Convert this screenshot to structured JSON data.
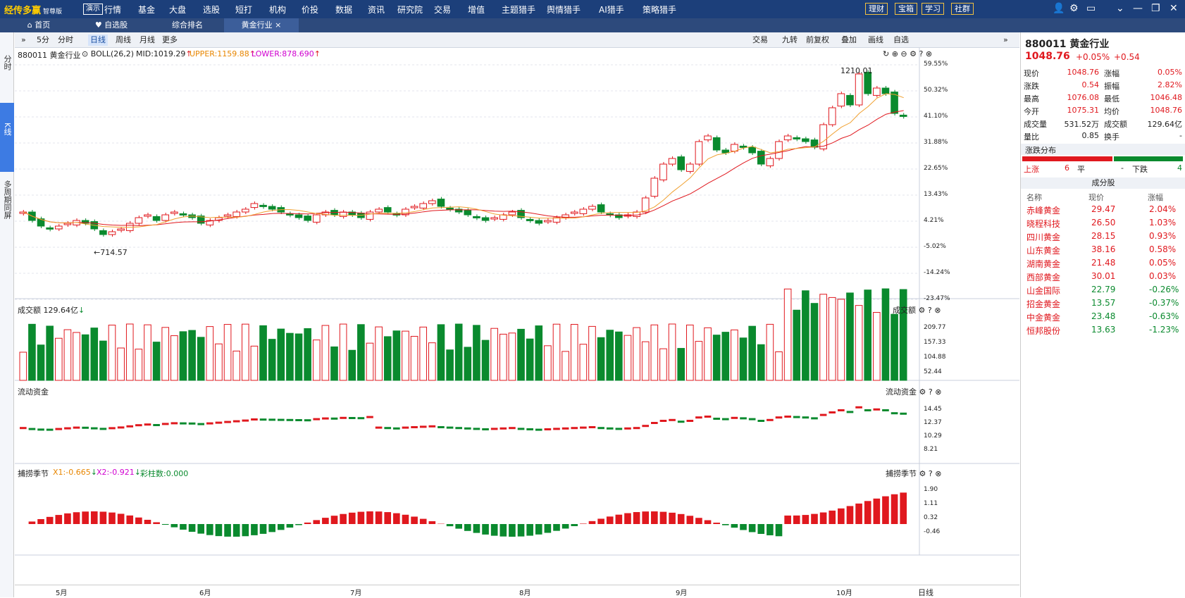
{
  "app": {
    "logo": "经传多赢",
    "edition": "智尊版",
    "demo": "演示"
  },
  "nav": [
    "行情",
    "基金",
    "大盘",
    "选股",
    "短打",
    "机构",
    "价投",
    "数据",
    "资讯",
    "研究院",
    "交易",
    "增值",
    "主题猎手",
    "舆情猎手",
    "AI猎手",
    "策略猎手"
  ],
  "top_right": [
    "理财",
    "宝箱",
    "学习",
    "社群"
  ],
  "tabs": [
    "首页",
    "自选股",
    "综合排名",
    "黄金行业"
  ],
  "left_buttons": [
    "分时",
    "K线",
    "多周期同屏"
  ],
  "toolbar": {
    "periods": [
      "5分",
      "分时",
      "日线",
      "周线",
      "月线",
      "更多"
    ],
    "active": "日线",
    "right": [
      "交易",
      "九转",
      "前复权",
      "叠加",
      "画线",
      "自选"
    ]
  },
  "main_indicator": {
    "code": "880011",
    "name": "黄金行业",
    "boll": "BOLL(26,2)",
    "mid": "MID:1019.29",
    "upper": "UPPER:1159.88",
    "lower": "LOWER:878.690",
    "high_mark": "1210.01",
    "low_mark": "714.57"
  },
  "price_axis": [
    "59.55%",
    "50.32%",
    "41.10%",
    "31.88%",
    "22.65%",
    "13.43%",
    "4.21%",
    "-5.02%",
    "-14.24%",
    "-23.47%"
  ],
  "volume": {
    "label": "成交额",
    "value": "129.64亿",
    "axis": [
      "209.77",
      "157.33",
      "104.88",
      "52.44"
    ],
    "unit": "X亿",
    "title_r": "成交额"
  },
  "flow": {
    "label": "流动资金",
    "axis": [
      "14.45",
      "12.37",
      "10.29",
      "8.21"
    ],
    "unit": "X亿",
    "title_r": "流动资金"
  },
  "season": {
    "label": "捕捞季节",
    "x1": "X1:-0.665",
    "x2": "X2:-0.921",
    "bars": "彩柱数:0.000",
    "axis": [
      "1.90",
      "1.11",
      "0.32",
      "-0.46"
    ],
    "title_r": "捕捞季节"
  },
  "months": [
    "5月",
    "6月",
    "7月",
    "8月",
    "9月",
    "10月"
  ],
  "period_footer": "日线",
  "quote": {
    "title": "880011 黄金行业",
    "price": "1048.76",
    "change_pct": "+0.05%",
    "change": "+0.54",
    "rows": [
      [
        "现价",
        "1048.76",
        "涨幅",
        "0.05%"
      ],
      [
        "涨跌",
        "0.54",
        "振幅",
        "2.82%"
      ],
      [
        "最高",
        "1076.08",
        "最低",
        "1046.48"
      ],
      [
        "今开",
        "1075.31",
        "均价",
        "1048.76"
      ],
      [
        "成交量",
        "531.52万",
        "成交额",
        "129.64亿"
      ],
      [
        "量比",
        "0.85",
        "换手",
        "-"
      ]
    ],
    "dist_title": "涨跌分布",
    "up_label": "上涨",
    "up": "6",
    "flat_label": "平",
    "flat": "-",
    "down_label": "下跌",
    "down": "4",
    "constituents_title": "成分股",
    "headers": [
      "名称",
      "现价",
      "涨幅"
    ],
    "stocks": [
      [
        "赤峰黄金",
        "29.47",
        "2.04%"
      ],
      [
        "晓程科技",
        "26.50",
        "1.03%"
      ],
      [
        "四川黄金",
        "28.15",
        "0.93%"
      ],
      [
        "山东黄金",
        "38.16",
        "0.58%"
      ],
      [
        "湖南黄金",
        "21.48",
        "0.05%"
      ],
      [
        "西部黄金",
        "30.01",
        "0.03%"
      ],
      [
        "山金国际",
        "22.79",
        "-0.26%"
      ],
      [
        "招金黄金",
        "13.57",
        "-0.37%"
      ],
      [
        "中金黄金",
        "23.48",
        "-0.63%"
      ],
      [
        "恒邦股份",
        "13.63",
        "-1.23%"
      ]
    ]
  },
  "chart_data": {
    "type": "candlestick",
    "title": "880011 黄金行业",
    "description_note": "daily candles, ~5月 to 10月",
    "closes_pct": [
      3,
      0,
      -2,
      -3,
      -2,
      -1,
      0,
      -1,
      -3,
      -5,
      -4,
      -3,
      -1,
      1,
      2,
      0,
      2,
      3,
      2,
      1,
      -1,
      0,
      1,
      2,
      3,
      4,
      6,
      5,
      4,
      3,
      2,
      1,
      0,
      2,
      3,
      2,
      3,
      2,
      1,
      3,
      4,
      3,
      2,
      4,
      5,
      6,
      7,
      5,
      4,
      3,
      2,
      1,
      0,
      1,
      2,
      3,
      1,
      0,
      -1,
      0,
      1,
      2,
      3,
      4,
      5,
      3,
      2,
      1,
      2,
      3,
      8,
      15,
      20,
      22,
      18,
      20,
      28,
      30,
      25,
      24,
      27,
      26,
      24,
      20,
      22,
      28,
      30,
      29,
      28,
      26,
      34,
      40,
      45,
      41,
      52,
      45,
      47,
      45,
      38,
      37
    ],
    "month_labels": [
      "5月",
      "6月",
      "7月",
      "8月",
      "9月",
      "10月"
    ]
  }
}
